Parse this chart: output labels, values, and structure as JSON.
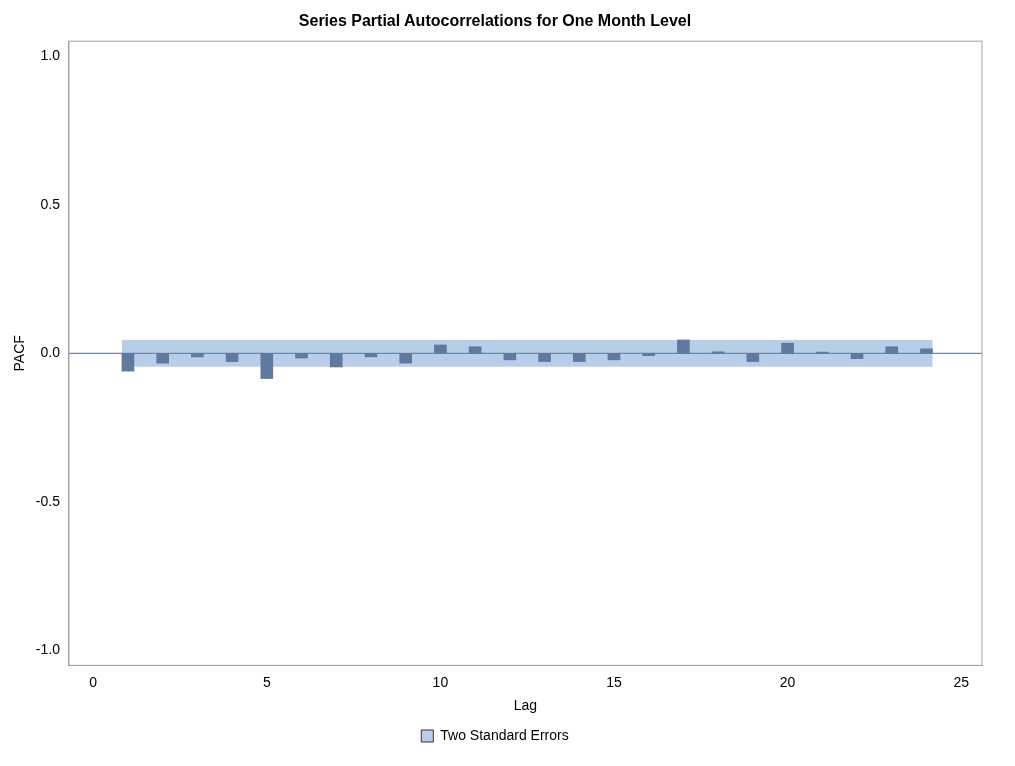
{
  "chart_data": {
    "type": "bar",
    "title": "Series Partial Autocorrelations for One Month Level",
    "xlabel": "Lag",
    "ylabel": "PACF",
    "x": [
      1,
      2,
      3,
      4,
      5,
      6,
      7,
      8,
      9,
      10,
      11,
      12,
      13,
      14,
      15,
      16,
      17,
      18,
      19,
      20,
      21,
      22,
      23,
      24
    ],
    "series": [
      {
        "color": "#5f7a9e",
        "values": [
          -0.06,
          -0.033,
          -0.012,
          -0.028,
          -0.085,
          -0.016,
          -0.046,
          -0.012,
          -0.033,
          0.028,
          0.022,
          -0.022,
          -0.028,
          -0.028,
          -0.022,
          -0.008,
          0.045,
          0.005,
          -0.028,
          0.034,
          0.004,
          -0.018,
          0.022,
          0.015
        ]
      }
    ],
    "bands": [
      {
        "axis": "y",
        "from": -0.045,
        "to": 0.045,
        "label": "Two Standard Errors",
        "color": "#b8cde8"
      }
    ],
    "ref_lines": [
      {
        "axis": "y",
        "value": 0,
        "color": "#6f86a6"
      }
    ],
    "xlim": [
      -0.7,
      25.6
    ],
    "xticks": [
      0,
      5,
      10,
      15,
      20,
      25
    ],
    "ylim": [
      -1.05,
      1.05
    ],
    "yticks": [
      {
        "value": -1,
        "label": "-1.0"
      },
      -0.5,
      {
        "value": 0,
        "label": "0.0"
      },
      0.5,
      {
        "value": 1,
        "label": "1.0"
      }
    ],
    "grid": false,
    "legend": "bottom"
  }
}
